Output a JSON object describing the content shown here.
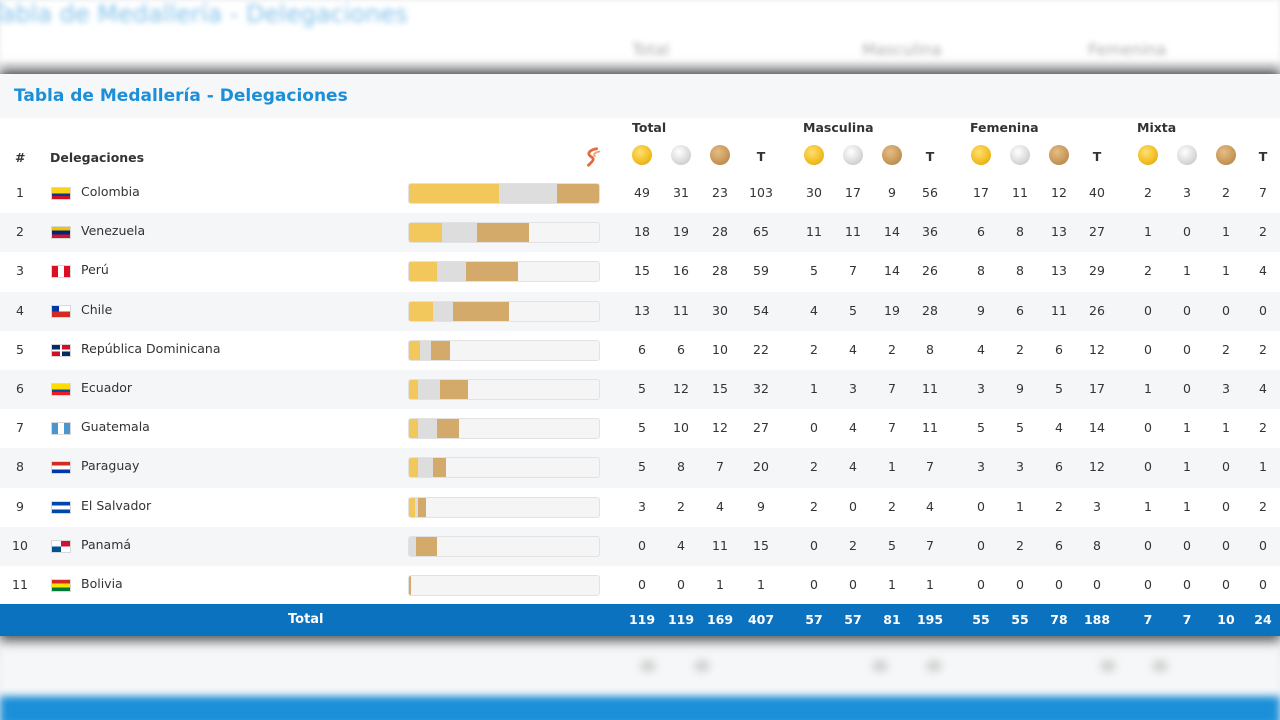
{
  "page_title": "Tabla de Medallería - Delegaciones",
  "bg_title": "Tabla de Medallería - Delegaciones",
  "header": {
    "hash": "#",
    "delegaciones": "Delegaciones",
    "groups": [
      "Total",
      "Masculina",
      "Femenina",
      "Mixta"
    ],
    "t_label": "T"
  },
  "colors": {
    "gold": "#f2c75c",
    "silver": "#dddddd",
    "bronze": "#d4aa6a",
    "title_blue": "#1b8fd8",
    "total_bar": "#0b72c0"
  },
  "rows": [
    {
      "rank": "1",
      "name": "Colombia",
      "flag": "colombia",
      "total": [
        "49",
        "31",
        "23",
        "103"
      ],
      "masc": [
        "30",
        "17",
        "9",
        "56"
      ],
      "fem": [
        "17",
        "11",
        "12",
        "40"
      ],
      "mixta": [
        "2",
        "3",
        "2",
        "7"
      ]
    },
    {
      "rank": "2",
      "name": "Venezuela",
      "flag": "venezuela",
      "total": [
        "18",
        "19",
        "28",
        "65"
      ],
      "masc": [
        "11",
        "11",
        "14",
        "36"
      ],
      "fem": [
        "6",
        "8",
        "13",
        "27"
      ],
      "mixta": [
        "1",
        "0",
        "1",
        "2"
      ]
    },
    {
      "rank": "3",
      "name": "Perú",
      "flag": "peru",
      "total": [
        "15",
        "16",
        "28",
        "59"
      ],
      "masc": [
        "5",
        "7",
        "14",
        "26"
      ],
      "fem": [
        "8",
        "8",
        "13",
        "29"
      ],
      "mixta": [
        "2",
        "1",
        "1",
        "4"
      ]
    },
    {
      "rank": "4",
      "name": "Chile",
      "flag": "chile",
      "total": [
        "13",
        "11",
        "30",
        "54"
      ],
      "masc": [
        "4",
        "5",
        "19",
        "28"
      ],
      "fem": [
        "9",
        "6",
        "11",
        "26"
      ],
      "mixta": [
        "0",
        "0",
        "0",
        "0"
      ]
    },
    {
      "rank": "5",
      "name": "República Dominicana",
      "flag": "dominicana",
      "total": [
        "6",
        "6",
        "10",
        "22"
      ],
      "masc": [
        "2",
        "4",
        "2",
        "8"
      ],
      "fem": [
        "4",
        "2",
        "6",
        "12"
      ],
      "mixta": [
        "0",
        "0",
        "2",
        "2"
      ]
    },
    {
      "rank": "6",
      "name": "Ecuador",
      "flag": "ecuador",
      "total": [
        "5",
        "12",
        "15",
        "32"
      ],
      "masc": [
        "1",
        "3",
        "7",
        "11"
      ],
      "fem": [
        "3",
        "9",
        "5",
        "17"
      ],
      "mixta": [
        "1",
        "0",
        "3",
        "4"
      ]
    },
    {
      "rank": "7",
      "name": "Guatemala",
      "flag": "guatemala",
      "total": [
        "5",
        "10",
        "12",
        "27"
      ],
      "masc": [
        "0",
        "4",
        "7",
        "11"
      ],
      "fem": [
        "5",
        "5",
        "4",
        "14"
      ],
      "mixta": [
        "0",
        "1",
        "1",
        "2"
      ]
    },
    {
      "rank": "8",
      "name": "Paraguay",
      "flag": "paraguay",
      "total": [
        "5",
        "8",
        "7",
        "20"
      ],
      "masc": [
        "2",
        "4",
        "1",
        "7"
      ],
      "fem": [
        "3",
        "3",
        "6",
        "12"
      ],
      "mixta": [
        "0",
        "1",
        "0",
        "1"
      ]
    },
    {
      "rank": "9",
      "name": "El Salvador",
      "flag": "elsalvador",
      "total": [
        "3",
        "2",
        "4",
        "9"
      ],
      "masc": [
        "2",
        "0",
        "2",
        "4"
      ],
      "fem": [
        "0",
        "1",
        "2",
        "3"
      ],
      "mixta": [
        "1",
        "1",
        "0",
        "2"
      ]
    },
    {
      "rank": "10",
      "name": "Panamá",
      "flag": "panama",
      "total": [
        "0",
        "4",
        "11",
        "15"
      ],
      "masc": [
        "0",
        "2",
        "5",
        "7"
      ],
      "fem": [
        "0",
        "2",
        "6",
        "8"
      ],
      "mixta": [
        "0",
        "0",
        "0",
        "0"
      ]
    },
    {
      "rank": "11",
      "name": "Bolivia",
      "flag": "bolivia",
      "total": [
        "0",
        "0",
        "1",
        "1"
      ],
      "masc": [
        "0",
        "0",
        "1",
        "1"
      ],
      "fem": [
        "0",
        "0",
        "0",
        "0"
      ],
      "mixta": [
        "0",
        "0",
        "0",
        "0"
      ]
    }
  ],
  "totals": {
    "label": "Total",
    "total": [
      "119",
      "119",
      "169",
      "407"
    ],
    "masc": [
      "57",
      "57",
      "81",
      "195"
    ],
    "fem": [
      "55",
      "55",
      "78",
      "188"
    ],
    "mixta": [
      "7",
      "7",
      "10",
      "24"
    ]
  }
}
